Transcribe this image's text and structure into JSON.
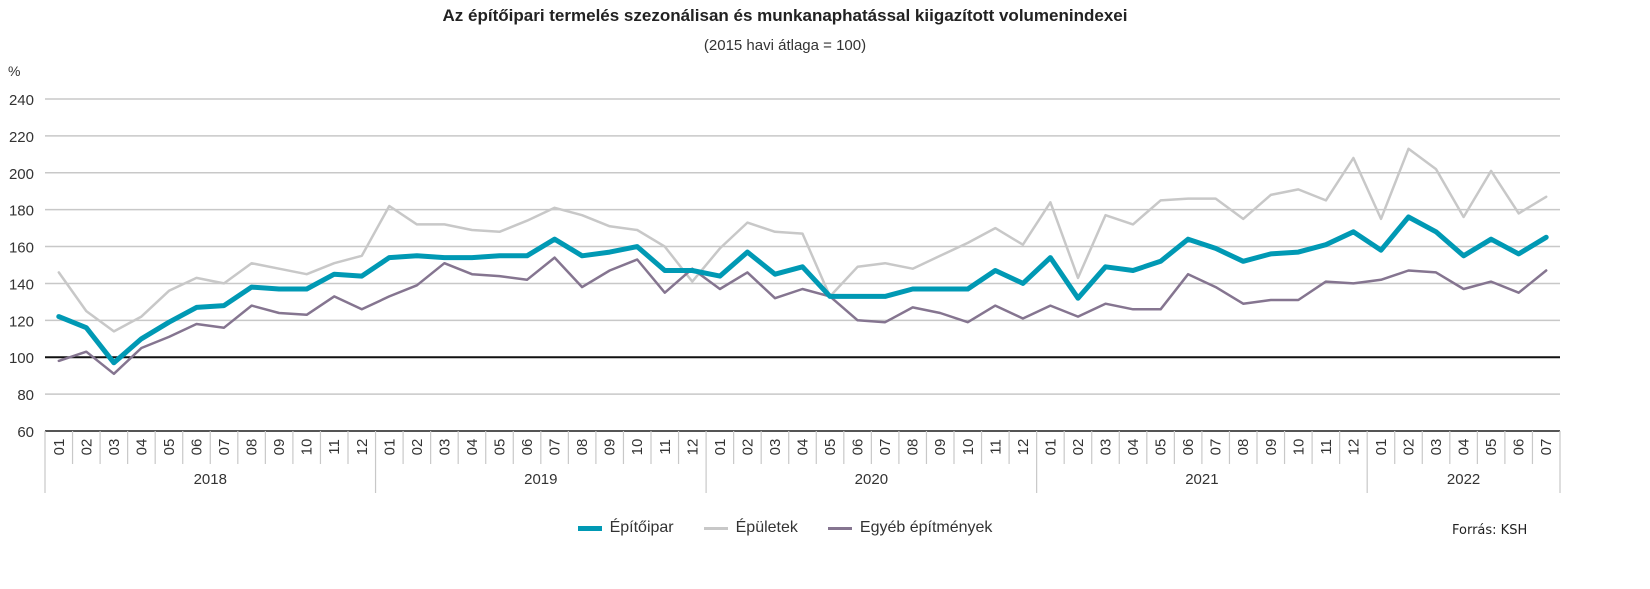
{
  "chart_data": {
    "type": "line",
    "title": "Az építőipari termelés szezonálisan és munkanaphatással kiigazított volumenindexei",
    "subtitle": "(2015 havi átlaga = 100)",
    "ylabel": "%",
    "xlabel": "",
    "ylim": [
      60,
      240
    ],
    "yticks": [
      60,
      80,
      100,
      120,
      140,
      160,
      180,
      200,
      220,
      240
    ],
    "ytick_labels": [
      "60",
      "80",
      "100",
      "120",
      "140",
      "160",
      "180",
      "200",
      "220",
      "240"
    ],
    "reference_line": 100,
    "grid": true,
    "years": [
      {
        "label": "2018",
        "months": [
          "01",
          "02",
          "03",
          "04",
          "05",
          "06",
          "07",
          "08",
          "09",
          "10",
          "11",
          "12"
        ]
      },
      {
        "label": "2019",
        "months": [
          "01",
          "02",
          "03",
          "04",
          "05",
          "06",
          "07",
          "08",
          "09",
          "10",
          "11",
          "12"
        ]
      },
      {
        "label": "2020",
        "months": [
          "01",
          "02",
          "03",
          "04",
          "05",
          "06",
          "07",
          "08",
          "09",
          "10",
          "11",
          "12"
        ]
      },
      {
        "label": "2021",
        "months": [
          "01",
          "02",
          "03",
          "04",
          "05",
          "06",
          "07",
          "08",
          "09",
          "10",
          "11",
          "12"
        ]
      },
      {
        "label": "2022",
        "months": [
          "01",
          "02",
          "03",
          "04",
          "05",
          "06",
          "07"
        ]
      }
    ],
    "series": [
      {
        "name": "Épületek",
        "color": "#c8c8c8",
        "width": 2.5,
        "values": [
          146,
          125,
          114,
          122,
          136,
          143,
          140,
          151,
          148,
          145,
          151,
          155,
          182,
          172,
          172,
          169,
          168,
          174,
          181,
          177,
          171,
          169,
          160,
          141,
          159,
          173,
          168,
          167,
          133,
          149,
          151,
          148,
          155,
          162,
          170,
          161,
          184,
          143,
          177,
          172,
          185,
          186,
          186,
          175,
          188,
          191,
          185,
          208,
          175,
          213,
          202,
          176,
          201,
          178,
          187
        ]
      },
      {
        "name": "Egyéb építmények",
        "color": "#857590",
        "width": 2.5,
        "values": [
          98,
          103,
          91,
          105,
          111,
          118,
          116,
          128,
          124,
          123,
          133,
          126,
          133,
          139,
          151,
          145,
          144,
          142,
          154,
          138,
          147,
          153,
          135,
          148,
          137,
          146,
          132,
          137,
          133,
          120,
          119,
          127,
          124,
          119,
          128,
          121,
          128,
          122,
          129,
          126,
          126,
          145,
          138,
          129,
          131,
          131,
          141,
          140,
          142,
          147,
          146,
          137,
          141,
          135,
          147
        ]
      },
      {
        "name": "Építőipar",
        "color": "#0099b4",
        "width": 5,
        "values": [
          122,
          116,
          97,
          110,
          119,
          127,
          128,
          138,
          137,
          137,
          145,
          144,
          154,
          155,
          154,
          154,
          155,
          155,
          164,
          155,
          157,
          160,
          147,
          147,
          144,
          157,
          145,
          149,
          133,
          133,
          133,
          137,
          137,
          137,
          147,
          140,
          154,
          132,
          149,
          147,
          152,
          164,
          159,
          152,
          156,
          157,
          161,
          168,
          158,
          176,
          168,
          155,
          164,
          156,
          165
        ]
      }
    ],
    "legend": {
      "placement": "bottom",
      "items": [
        {
          "label": "Építőipar",
          "color": "#0099b4"
        },
        {
          "label": "Épületek",
          "color": "#c8c8c8"
        },
        {
          "label": "Egyéb építmények",
          "color": "#857590"
        }
      ]
    },
    "source": "Forrás: KSH"
  }
}
